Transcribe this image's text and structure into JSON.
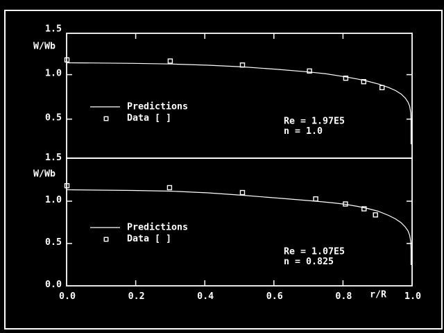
{
  "screen": {
    "background": "#000000",
    "foreground": "#ffffff",
    "border_color": "#ffffff"
  },
  "chart_data": [
    {
      "type": "line",
      "title": "",
      "xlabel": "",
      "ylabel": "W/Wb",
      "xlim": [
        0.0,
        1.0
      ],
      "ylim": [
        0.0,
        1.5
      ],
      "grid": false,
      "legend_position": "center-left",
      "legend": {
        "line_label": "Predictions",
        "marker_label": "Data [  ]"
      },
      "annotation_lines": [
        "Re = 1.97E5",
        "n  = 1.0"
      ],
      "ytick_labels": [
        {
          "value": 1.5,
          "label": "1.5"
        },
        {
          "value": 1.0,
          "label": "1.0"
        },
        {
          "value": 0.5,
          "label": "0.5"
        }
      ],
      "ytick_marks": [
        1.0,
        0.5
      ],
      "xtick_marks": [
        0.2,
        0.4,
        0.6,
        0.8
      ],
      "series": [
        {
          "name": "Predictions",
          "type": "line",
          "points": [
            [
              0.0,
              1.133
            ],
            [
              0.088,
              1.131
            ],
            [
              0.189,
              1.127
            ],
            [
              0.299,
              1.12
            ],
            [
              0.41,
              1.106
            ],
            [
              0.51,
              1.087
            ],
            [
              0.611,
              1.059
            ],
            [
              0.703,
              1.03
            ],
            [
              0.751,
              1.009
            ],
            [
              0.807,
              0.975
            ],
            [
              0.841,
              0.952
            ],
            [
              0.871,
              0.927
            ],
            [
              0.902,
              0.895
            ],
            [
              0.932,
              0.856
            ],
            [
              0.952,
              0.821
            ],
            [
              0.968,
              0.782
            ],
            [
              0.98,
              0.739
            ],
            [
              0.988,
              0.693
            ],
            [
              0.993,
              0.646
            ],
            [
              0.996,
              0.575
            ],
            [
              0.997,
              0.474
            ],
            [
              0.997,
              0.217
            ]
          ]
        },
        {
          "name": "Data",
          "type": "scatter",
          "points": [
            [
              0.001,
              1.166
            ],
            [
              0.3,
              1.153
            ],
            [
              0.509,
              1.108
            ],
            [
              0.703,
              1.041
            ],
            [
              0.808,
              0.96
            ],
            [
              0.86,
              0.921
            ],
            [
              0.913,
              0.854
            ]
          ]
        }
      ]
    },
    {
      "type": "line",
      "title": "",
      "xlabel": "r/R",
      "ylabel": "W/Wb",
      "xlim": [
        0.0,
        1.0
      ],
      "ylim": [
        0.0,
        1.5
      ],
      "grid": false,
      "legend_position": "center-left",
      "legend": {
        "line_label": "Predictions",
        "marker_label": "Data [  ]"
      },
      "annotation_lines": [
        "Re = 1.07E5",
        "n  = 0.825"
      ],
      "ytick_labels": [
        {
          "value": 1.5,
          "label": "1.5"
        },
        {
          "value": 1.0,
          "label": "1.0"
        },
        {
          "value": 0.5,
          "label": "0.5"
        },
        {
          "value": 0.0,
          "label": "0.0"
        }
      ],
      "ytick_marks": [
        1.0,
        0.5
      ],
      "xtick_marks": [
        0.2,
        0.4,
        0.6,
        0.8
      ],
      "xtick_labels": [
        {
          "value": 0.0,
          "label": "0.0"
        },
        {
          "value": 0.2,
          "label": "0.2"
        },
        {
          "value": 0.4,
          "label": "0.4"
        },
        {
          "value": 0.6,
          "label": "0.6"
        },
        {
          "value": 0.8,
          "label": "0.8"
        },
        {
          "value": 1.0,
          "label": "1.0"
        }
      ],
      "series": [
        {
          "name": "Predictions",
          "type": "line",
          "points": [
            [
              0.0,
              1.135
            ],
            [
              0.088,
              1.131
            ],
            [
              0.189,
              1.127
            ],
            [
              0.299,
              1.119
            ],
            [
              0.41,
              1.098
            ],
            [
              0.51,
              1.07
            ],
            [
              0.611,
              1.037
            ],
            [
              0.721,
              1.0
            ],
            [
              0.771,
              0.98
            ],
            [
              0.807,
              0.963
            ],
            [
              0.841,
              0.939
            ],
            [
              0.871,
              0.914
            ],
            [
              0.902,
              0.881
            ],
            [
              0.932,
              0.832
            ],
            [
              0.952,
              0.791
            ],
            [
              0.968,
              0.746
            ],
            [
              0.98,
              0.697
            ],
            [
              0.988,
              0.652
            ],
            [
              0.993,
              0.598
            ],
            [
              0.996,
              0.525
            ],
            [
              0.997,
              0.426
            ],
            [
              0.997,
              0.246
            ]
          ]
        },
        {
          "name": "Data",
          "type": "scatter",
          "points": [
            [
              0.001,
              1.183
            ],
            [
              0.298,
              1.16
            ],
            [
              0.509,
              1.102
            ],
            [
              0.721,
              1.027
            ],
            [
              0.807,
              0.967
            ],
            [
              0.861,
              0.91
            ],
            [
              0.894,
              0.838
            ]
          ]
        }
      ]
    }
  ]
}
